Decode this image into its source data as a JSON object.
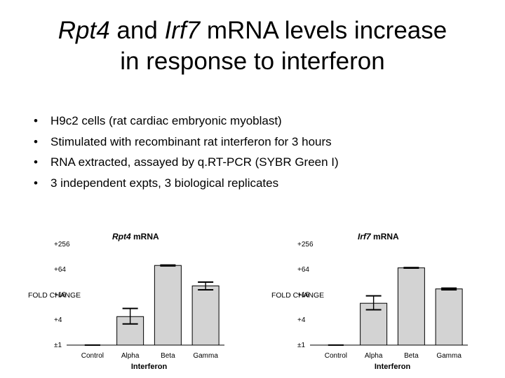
{
  "title": {
    "gene1": "Rpt4",
    "mid": " and ",
    "gene2": "Irf7",
    "rest1": " mRNA levels increase",
    "line2": "in response to interferon"
  },
  "bullets": [
    "H9c2 cells (rat cardiac embryonic myoblast)",
    "Stimulated with recombinant rat interferon for 3 hours",
    "RNA extracted, assayed by q.RT-PCR (SYBR Green I)",
    "3 independent expts, 3 biological replicates"
  ],
  "bullet_symbol": "•",
  "chart_data": [
    {
      "type": "bar",
      "title_gene": "Rpt4",
      "title_suffix": " mRNA",
      "categories": [
        "Control",
        "Alpha",
        "Beta",
        "Gamma"
      ],
      "values": [
        1,
        4.8,
        80,
        26
      ],
      "errors": [
        [
          1,
          1
        ],
        [
          3.2,
          7.5
        ],
        [
          78,
          82
        ],
        [
          21,
          32
        ]
      ],
      "xlabel": "Interferon",
      "ylabel": "FOLD CHANGE",
      "yscale": "log2",
      "ylim": [
        1,
        256
      ],
      "yticks": [
        1,
        4,
        16,
        64,
        256
      ],
      "ytick_labels": [
        "±1",
        "+4",
        "+16",
        "+64",
        "+256"
      ],
      "bar_color": "#d3d3d3"
    },
    {
      "type": "bar",
      "title_gene": "Irf7",
      "title_suffix": " mRNA",
      "categories": [
        "Control",
        "Alpha",
        "Beta",
        "Gamma"
      ],
      "values": [
        1,
        10,
        70,
        22
      ],
      "errors": [
        [
          1,
          1
        ],
        [
          7,
          15
        ],
        [
          69,
          71
        ],
        [
          21,
          23
        ]
      ],
      "xlabel": "Interferon",
      "ylabel": "FOLD CHANGE",
      "yscale": "log2",
      "ylim": [
        1,
        256
      ],
      "yticks": [
        1,
        4,
        16,
        64,
        256
      ],
      "ytick_labels": [
        "±1",
        "+4",
        "+16",
        "+64",
        "+256"
      ],
      "bar_color": "#d3d3d3"
    }
  ]
}
